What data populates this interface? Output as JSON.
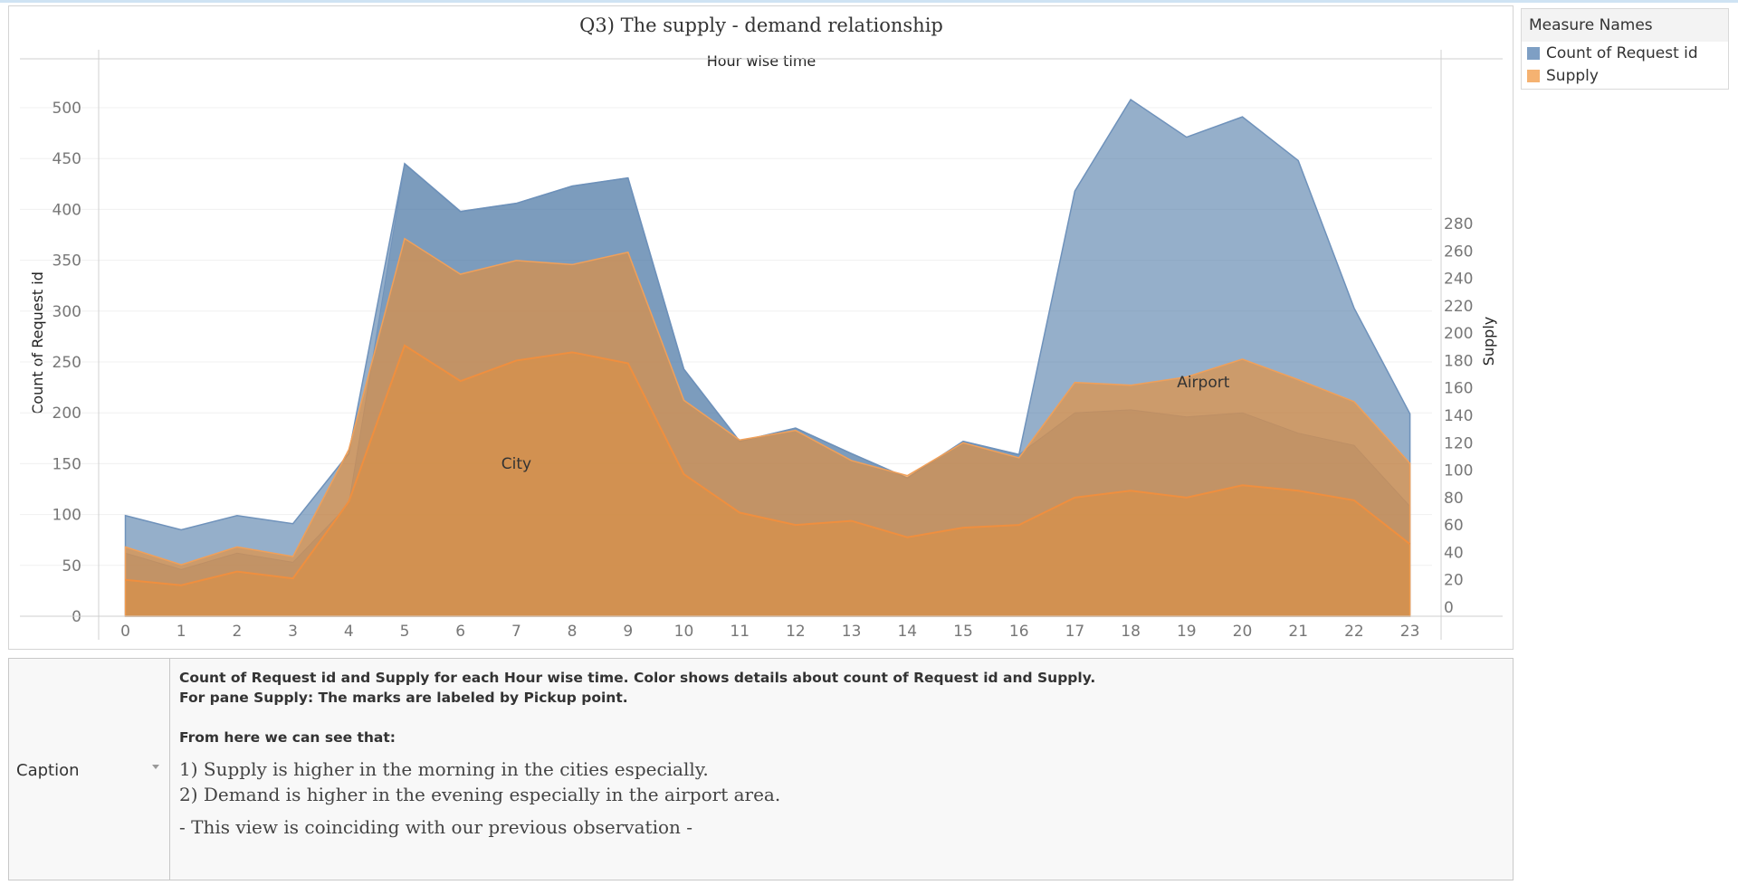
{
  "chart_data": {
    "type": "area",
    "title": "Q3) The supply - demand relationship",
    "xlabel": "Hour wise time",
    "ylabel": "Count of Request id",
    "y2label": "Supply",
    "x": [
      0,
      1,
      2,
      3,
      4,
      5,
      6,
      7,
      8,
      9,
      10,
      11,
      12,
      13,
      14,
      15,
      16,
      17,
      18,
      19,
      20,
      21,
      22,
      23
    ],
    "ylim": [
      0,
      550
    ],
    "y2lim": [
      0,
      290
    ],
    "yticks": [
      0,
      50,
      100,
      150,
      200,
      250,
      300,
      350,
      400,
      450,
      500
    ],
    "y2ticks": [
      0,
      20,
      40,
      60,
      80,
      100,
      120,
      140,
      160,
      180,
      200,
      220,
      240,
      260,
      280
    ],
    "series": [
      {
        "name": "Count of Request id",
        "axis": "left",
        "pane": "City",
        "values": [
          62,
          46,
          62,
          53,
          110,
          445,
          398,
          406,
          423,
          431,
          243,
          172,
          185,
          160,
          136,
          172,
          159,
          200,
          203,
          196,
          200,
          180,
          168,
          108
        ]
      },
      {
        "name": "Count of Request id",
        "axis": "left",
        "pane": "Airport",
        "values": [
          37,
          39,
          37,
          38,
          50,
          0,
          0,
          0,
          0,
          0,
          0,
          0,
          0,
          0,
          0,
          0,
          0,
          218,
          305,
          275,
          291,
          268,
          135,
          91
        ]
      },
      {
        "name": "Supply",
        "axis": "right",
        "pane": "City",
        "values": [
          20,
          16,
          26,
          21,
          77,
          191,
          165,
          180,
          186,
          178,
          97,
          69,
          60,
          63,
          51,
          58,
          60,
          80,
          85,
          80,
          89,
          85,
          78,
          46
        ]
      },
      {
        "name": "Supply",
        "axis": "right",
        "pane": "Airport",
        "values": [
          24,
          15,
          18,
          16,
          38,
          78,
          78,
          73,
          64,
          81,
          54,
          53,
          69,
          44,
          45,
          62,
          49,
          84,
          77,
          88,
          92,
          81,
          72,
          59
        ]
      }
    ],
    "pane_labels": [
      "City",
      "Airport"
    ],
    "colors": {
      "Count of Request id": "#4e79a7",
      "Supply": "#f28e2b"
    },
    "legend_position": "right",
    "grid": true
  },
  "legend": {
    "title": "Measure Names",
    "items": [
      {
        "label": "Count of Request id",
        "color": "#7e9fc4"
      },
      {
        "label": "Supply",
        "color": "#f5b271"
      }
    ]
  },
  "caption": {
    "label": "Caption",
    "line1": "Count of Request id and Supply for each Hour wise time.  Color shows details about count of Request id and Supply.",
    "line2": "For pane Supply:  The marks are labeled by Pickup point.",
    "line3": "From here we can see that:",
    "obs1": "1) Supply is higher in the morning in the cities especially.",
    "obs2": "2) Demand is higher in the evening especially in the airport area.",
    "obs3": "-  This view is coinciding with our previous observation -"
  }
}
